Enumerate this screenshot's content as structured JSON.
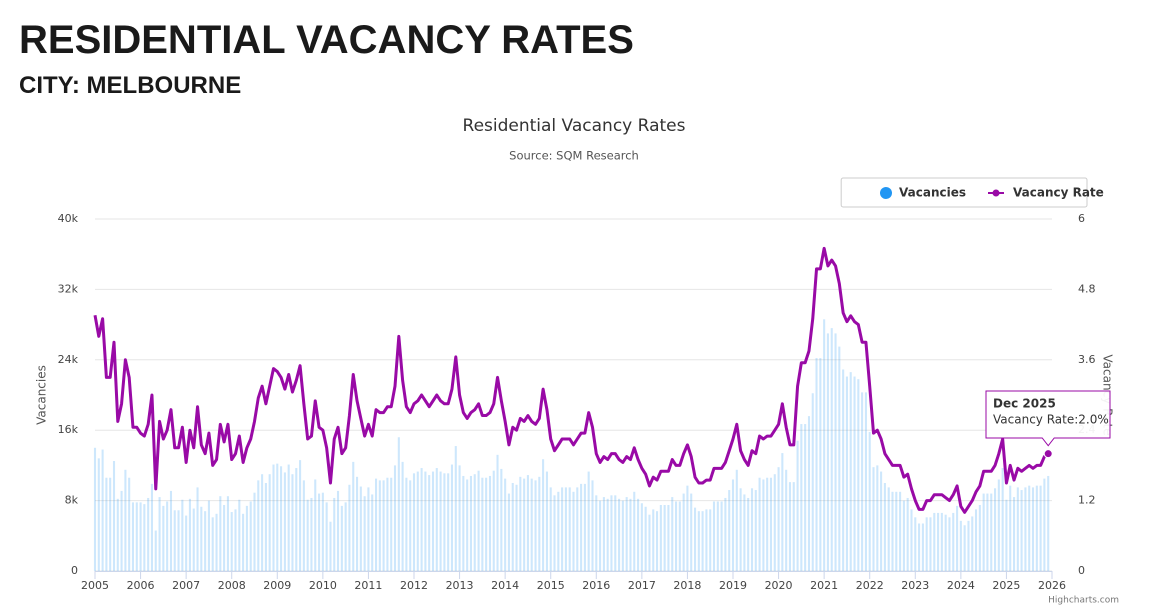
{
  "page": {
    "heading": "RESIDENTIAL VACANCY RATES",
    "subheading": "CITY: MELBOURNE"
  },
  "chart_data": {
    "type": "combo",
    "title": "Residential Vacancy Rates",
    "subtitle": "Source: SQM Research",
    "y_label": "Vacancies",
    "y2_label": "Vacancy Rate",
    "credits": "Highcharts.com",
    "legend": "top-right",
    "grid": true,
    "tooltip": {
      "title": "Dec 2025",
      "text": "Vacancy Rate:2.0%"
    },
    "xlim": [
      2005,
      2026
    ],
    "xticks": [
      2005,
      2006,
      2007,
      2008,
      2009,
      2010,
      2011,
      2012,
      2013,
      2014,
      2015,
      2016,
      2017,
      2018,
      2019,
      2020,
      2021,
      2022,
      2023,
      2024,
      2025,
      2026
    ],
    "ylim": [
      0,
      40000
    ],
    "yticks": [
      0,
      {
        "value": 8000,
        "label": "8k"
      },
      {
        "value": 16000,
        "label": "16k"
      },
      {
        "value": 24000,
        "label": "24k"
      },
      {
        "value": 32000,
        "label": "32k"
      },
      {
        "value": 40000,
        "label": "40k"
      }
    ],
    "y2lim": [
      0,
      6
    ],
    "y2ticks": [
      0,
      1.2,
      2.4,
      3.6,
      4.8,
      6
    ],
    "x": [
      2005,
      2005.083,
      2005.167,
      2005.25,
      2005.333,
      2005.417,
      2005.5,
      2005.583,
      2005.667,
      2005.75,
      2005.833,
      2005.917,
      2006,
      2006.083,
      2006.167,
      2006.25,
      2006.333,
      2006.417,
      2006.5,
      2006.583,
      2006.667,
      2006.75,
      2006.833,
      2006.917,
      2007,
      2007.083,
      2007.167,
      2007.25,
      2007.333,
      2007.417,
      2007.5,
      2007.583,
      2007.667,
      2007.75,
      2007.833,
      2007.917,
      2008,
      2008.083,
      2008.167,
      2008.25,
      2008.333,
      2008.417,
      2008.5,
      2008.583,
      2008.667,
      2008.75,
      2008.833,
      2008.917,
      2009,
      2009.083,
      2009.167,
      2009.25,
      2009.333,
      2009.417,
      2009.5,
      2009.583,
      2009.667,
      2009.75,
      2009.833,
      2009.917,
      2010,
      2010.083,
      2010.167,
      2010.25,
      2010.333,
      2010.417,
      2010.5,
      2010.583,
      2010.667,
      2010.75,
      2010.833,
      2010.917,
      2011,
      2011.083,
      2011.167,
      2011.25,
      2011.333,
      2011.417,
      2011.5,
      2011.583,
      2011.667,
      2011.75,
      2011.833,
      2011.917,
      2012,
      2012.083,
      2012.167,
      2012.25,
      2012.333,
      2012.417,
      2012.5,
      2012.583,
      2012.667,
      2012.75,
      2012.833,
      2012.917,
      2013,
      2013.083,
      2013.167,
      2013.25,
      2013.333,
      2013.417,
      2013.5,
      2013.583,
      2013.667,
      2013.75,
      2013.833,
      2013.917,
      2014,
      2014.083,
      2014.167,
      2014.25,
      2014.333,
      2014.417,
      2014.5,
      2014.583,
      2014.667,
      2014.75,
      2014.833,
      2014.917,
      2015,
      2015.083,
      2015.167,
      2015.25,
      2015.333,
      2015.417,
      2015.5,
      2015.583,
      2015.667,
      2015.75,
      2015.833,
      2015.917,
      2016,
      2016.083,
      2016.167,
      2016.25,
      2016.333,
      2016.417,
      2016.5,
      2016.583,
      2016.667,
      2016.75,
      2016.833,
      2016.917,
      2017,
      2017.083,
      2017.167,
      2017.25,
      2017.333,
      2017.417,
      2017.5,
      2017.583,
      2017.667,
      2017.75,
      2017.833,
      2017.917,
      2018,
      2018.083,
      2018.167,
      2018.25,
      2018.333,
      2018.417,
      2018.5,
      2018.583,
      2018.667,
      2018.75,
      2018.833,
      2018.917,
      2019,
      2019.083,
      2019.167,
      2019.25,
      2019.333,
      2019.417,
      2019.5,
      2019.583,
      2019.667,
      2019.75,
      2019.833,
      2019.917,
      2020,
      2020.083,
      2020.167,
      2020.25,
      2020.333,
      2020.417,
      2020.5,
      2020.583,
      2020.667,
      2020.75,
      2020.833,
      2020.917,
      2021,
      2021.083,
      2021.167,
      2021.25,
      2021.333,
      2021.417,
      2021.5,
      2021.583,
      2021.667,
      2021.75,
      2021.833,
      2021.917,
      2022,
      2022.083,
      2022.167,
      2022.25,
      2022.333,
      2022.417,
      2022.5,
      2022.583,
      2022.667,
      2022.75,
      2022.833,
      2022.917,
      2023,
      2023.083,
      2023.167,
      2023.25,
      2023.333,
      2023.417,
      2023.5,
      2023.583,
      2023.667,
      2023.75,
      2023.833,
      2023.917,
      2024,
      2024.083,
      2024.167,
      2024.25,
      2024.333,
      2024.417,
      2024.5,
      2024.583,
      2024.667,
      2024.75,
      2024.833,
      2024.917,
      2025,
      2025.083,
      2025.167,
      2025.25,
      2025.333,
      2025.417,
      2025.5,
      2025.583,
      2025.667,
      2025.75,
      2025.833,
      2025.917
    ],
    "series": [
      {
        "name": "Vacancies",
        "type": "column",
        "color": "#2196f3",
        "values": [
          14000,
          12800,
          13800,
          10600,
          10600,
          12500,
          8200,
          9100,
          11500,
          10600,
          7800,
          7800,
          7800,
          7600,
          8300,
          9900,
          4600,
          8400,
          7400,
          7900,
          9100,
          6900,
          6900,
          8100,
          6300,
          8200,
          7100,
          9500,
          7300,
          6800,
          8000,
          6100,
          6500,
          8500,
          7500,
          8500,
          6700,
          7000,
          8100,
          6500,
          7400,
          7900,
          8900,
          10300,
          11000,
          10000,
          11000,
          12100,
          12200,
          11900,
          11200,
          12100,
          11000,
          11700,
          12600,
          10300,
          8100,
          8300,
          10400,
          8800,
          8900,
          7800,
          5600,
          8300,
          9100,
          7400,
          7800,
          9800,
          12400,
          10700,
          9600,
          8500,
          9500,
          8700,
          10500,
          10300,
          10300,
          10600,
          10600,
          12000,
          15200,
          12400,
          10600,
          10300,
          11100,
          11300,
          11700,
          11300,
          10900,
          11300,
          11700,
          11300,
          11100,
          11100,
          12100,
          14200,
          12000,
          10800,
          10400,
          10800,
          11000,
          11400,
          10600,
          10600,
          10800,
          11400,
          13200,
          11600,
          10500,
          8800,
          10000,
          9800,
          10700,
          10500,
          10900,
          10500,
          10300,
          10700,
          12700,
          11300,
          9500,
          8600,
          9000,
          9500,
          9500,
          9500,
          9000,
          9500,
          9900,
          9900,
          11300,
          10300,
          8600,
          8000,
          8400,
          8200,
          8600,
          8600,
          8200,
          8000,
          8400,
          8200,
          9000,
          8200,
          7700,
          7300,
          6400,
          7000,
          6800,
          7500,
          7500,
          7500,
          8400,
          7900,
          7900,
          8800,
          9700,
          8800,
          7200,
          6800,
          6800,
          7000,
          7000,
          7900,
          7900,
          7900,
          8300,
          9200,
          10400,
          11500,
          9400,
          8700,
          8300,
          9400,
          9200,
          10600,
          10400,
          10600,
          10600,
          11000,
          11800,
          13400,
          11500,
          10100,
          10100,
          14800,
          16700,
          16700,
          17600,
          20200,
          24200,
          24200,
          28600,
          27000,
          27600,
          27000,
          25500,
          22900,
          22100,
          22600,
          22100,
          21800,
          20300,
          20300,
          15800,
          11800,
          12000,
          11300,
          10000,
          9500,
          9000,
          9000,
          9000,
          8000,
          8300,
          7000,
          6100,
          5400,
          5400,
          6100,
          6100,
          6600,
          6600,
          6600,
          6400,
          6100,
          6600,
          7400,
          5700,
          5200,
          5700,
          6200,
          7000,
          7500,
          8800,
          8800,
          8800,
          9400,
          10400,
          11700,
          8100,
          9700,
          8400,
          9500,
          9200,
          9500,
          9700,
          9500,
          9700,
          9700,
          10500,
          10800
        ]
      },
      {
        "name": "Vacancy Rate",
        "type": "line",
        "axis": "y2",
        "color": "#990aa6",
        "values": [
          4.36,
          4.0,
          4.3,
          3.3,
          3.3,
          3.9,
          2.55,
          2.85,
          3.6,
          3.3,
          2.45,
          2.45,
          2.35,
          2.3,
          2.5,
          3.0,
          1.4,
          2.55,
          2.25,
          2.4,
          2.75,
          2.1,
          2.1,
          2.45,
          1.85,
          2.4,
          2.1,
          2.8,
          2.15,
          2.0,
          2.35,
          1.8,
          1.9,
          2.5,
          2.2,
          2.5,
          1.9,
          2.0,
          2.3,
          1.85,
          2.1,
          2.25,
          2.55,
          2.95,
          3.15,
          2.85,
          3.15,
          3.45,
          3.4,
          3.3,
          3.1,
          3.35,
          3.05,
          3.25,
          3.5,
          2.85,
          2.25,
          2.3,
          2.9,
          2.45,
          2.4,
          2.1,
          1.5,
          2.25,
          2.45,
          2.0,
          2.1,
          2.65,
          3.35,
          2.9,
          2.6,
          2.3,
          2.5,
          2.3,
          2.75,
          2.7,
          2.7,
          2.8,
          2.8,
          3.15,
          4.0,
          3.25,
          2.8,
          2.7,
          2.85,
          2.9,
          3.0,
          2.9,
          2.8,
          2.9,
          3.0,
          2.9,
          2.85,
          2.85,
          3.1,
          3.65,
          3.0,
          2.7,
          2.6,
          2.7,
          2.75,
          2.85,
          2.65,
          2.65,
          2.7,
          2.85,
          3.3,
          2.9,
          2.55,
          2.15,
          2.45,
          2.4,
          2.6,
          2.55,
          2.65,
          2.55,
          2.5,
          2.6,
          3.1,
          2.75,
          2.25,
          2.05,
          2.15,
          2.25,
          2.25,
          2.25,
          2.15,
          2.25,
          2.35,
          2.35,
          2.7,
          2.45,
          2.0,
          1.85,
          1.95,
          1.9,
          2.0,
          2.0,
          1.9,
          1.85,
          1.95,
          1.9,
          2.1,
          1.9,
          1.75,
          1.65,
          1.45,
          1.6,
          1.55,
          1.7,
          1.7,
          1.7,
          1.9,
          1.8,
          1.8,
          2.0,
          2.15,
          1.95,
          1.6,
          1.5,
          1.5,
          1.55,
          1.55,
          1.75,
          1.75,
          1.75,
          1.85,
          2.05,
          2.25,
          2.5,
          2.05,
          1.9,
          1.8,
          2.05,
          2.0,
          2.3,
          2.25,
          2.3,
          2.3,
          2.4,
          2.5,
          2.85,
          2.45,
          2.15,
          2.15,
          3.15,
          3.55,
          3.55,
          3.75,
          4.3,
          5.15,
          5.15,
          5.5,
          5.2,
          5.3,
          5.2,
          4.9,
          4.4,
          4.25,
          4.35,
          4.25,
          4.2,
          3.9,
          3.9,
          3.15,
          2.35,
          2.4,
          2.25,
          2.0,
          1.9,
          1.8,
          1.8,
          1.8,
          1.6,
          1.65,
          1.4,
          1.2,
          1.05,
          1.05,
          1.2,
          1.2,
          1.3,
          1.3,
          1.3,
          1.25,
          1.2,
          1.3,
          1.45,
          1.1,
          1.0,
          1.1,
          1.2,
          1.35,
          1.45,
          1.7,
          1.7,
          1.7,
          1.8,
          2.0,
          2.25,
          1.5,
          1.8,
          1.55,
          1.75,
          1.7,
          1.75,
          1.8,
          1.75,
          1.8,
          1.8,
          1.95,
          2.0
        ]
      }
    ]
  }
}
